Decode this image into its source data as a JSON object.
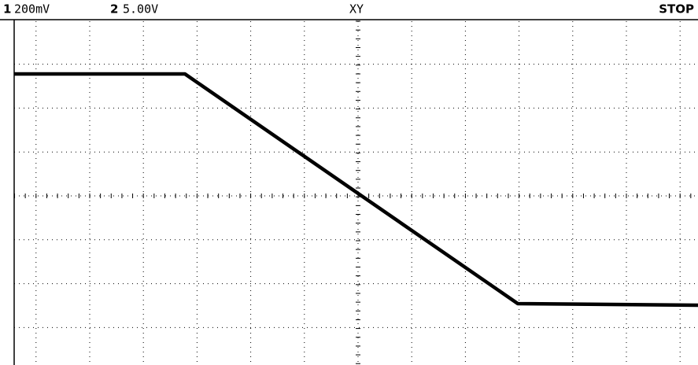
{
  "header": {
    "ch1_number": "1",
    "ch1_scale": "200mV",
    "ch2_number": "2",
    "ch2_scale": "5.00V",
    "mode": "XY",
    "status": "STOP"
  }
}
